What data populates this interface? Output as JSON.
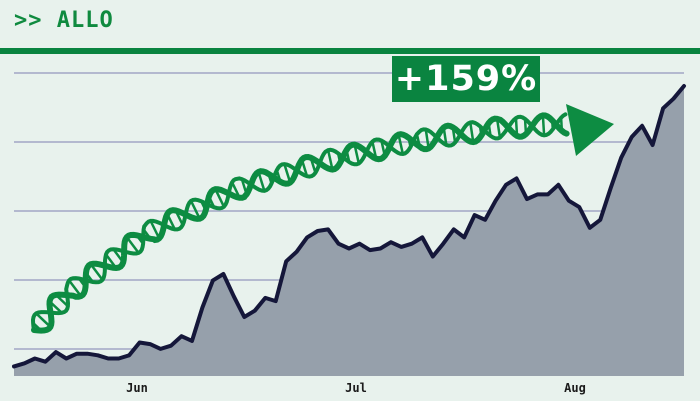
{
  "header": {
    "ticker_label": ">> ALLO"
  },
  "badge": {
    "text": "+159%"
  },
  "colors": {
    "background": "#e8f2ed",
    "brand_green": "#0a8440",
    "ticker_green": "#0f8a3f",
    "area_fill": "#96a0ab",
    "line": "#15173a",
    "gridline": "#b3b9cf",
    "helix": "#0d8c42"
  },
  "icons": {
    "trend_arrow": "dna-helix-arrow-icon"
  },
  "chart_data": {
    "type": "area",
    "title": "",
    "xlabel": "",
    "ylabel": "",
    "x_ticks": [
      "Jun",
      "Jul",
      "Aug"
    ],
    "grid": true,
    "legend": "none",
    "series": [
      {
        "values": [
          6,
          8,
          11,
          9,
          15,
          11,
          14,
          14,
          13,
          11,
          11,
          13,
          21,
          20,
          17,
          19,
          25,
          22,
          43,
          60,
          64,
          50,
          37,
          41,
          49,
          47,
          72,
          78,
          87,
          91,
          92,
          83,
          80,
          83,
          79,
          80,
          84,
          81,
          83,
          87,
          75,
          83,
          92,
          87,
          101,
          98,
          110,
          120,
          124,
          111,
          114,
          114,
          120,
          110,
          106,
          93,
          98,
          118,
          137,
          150,
          157,
          145,
          168,
          174,
          182
        ]
      }
    ]
  }
}
